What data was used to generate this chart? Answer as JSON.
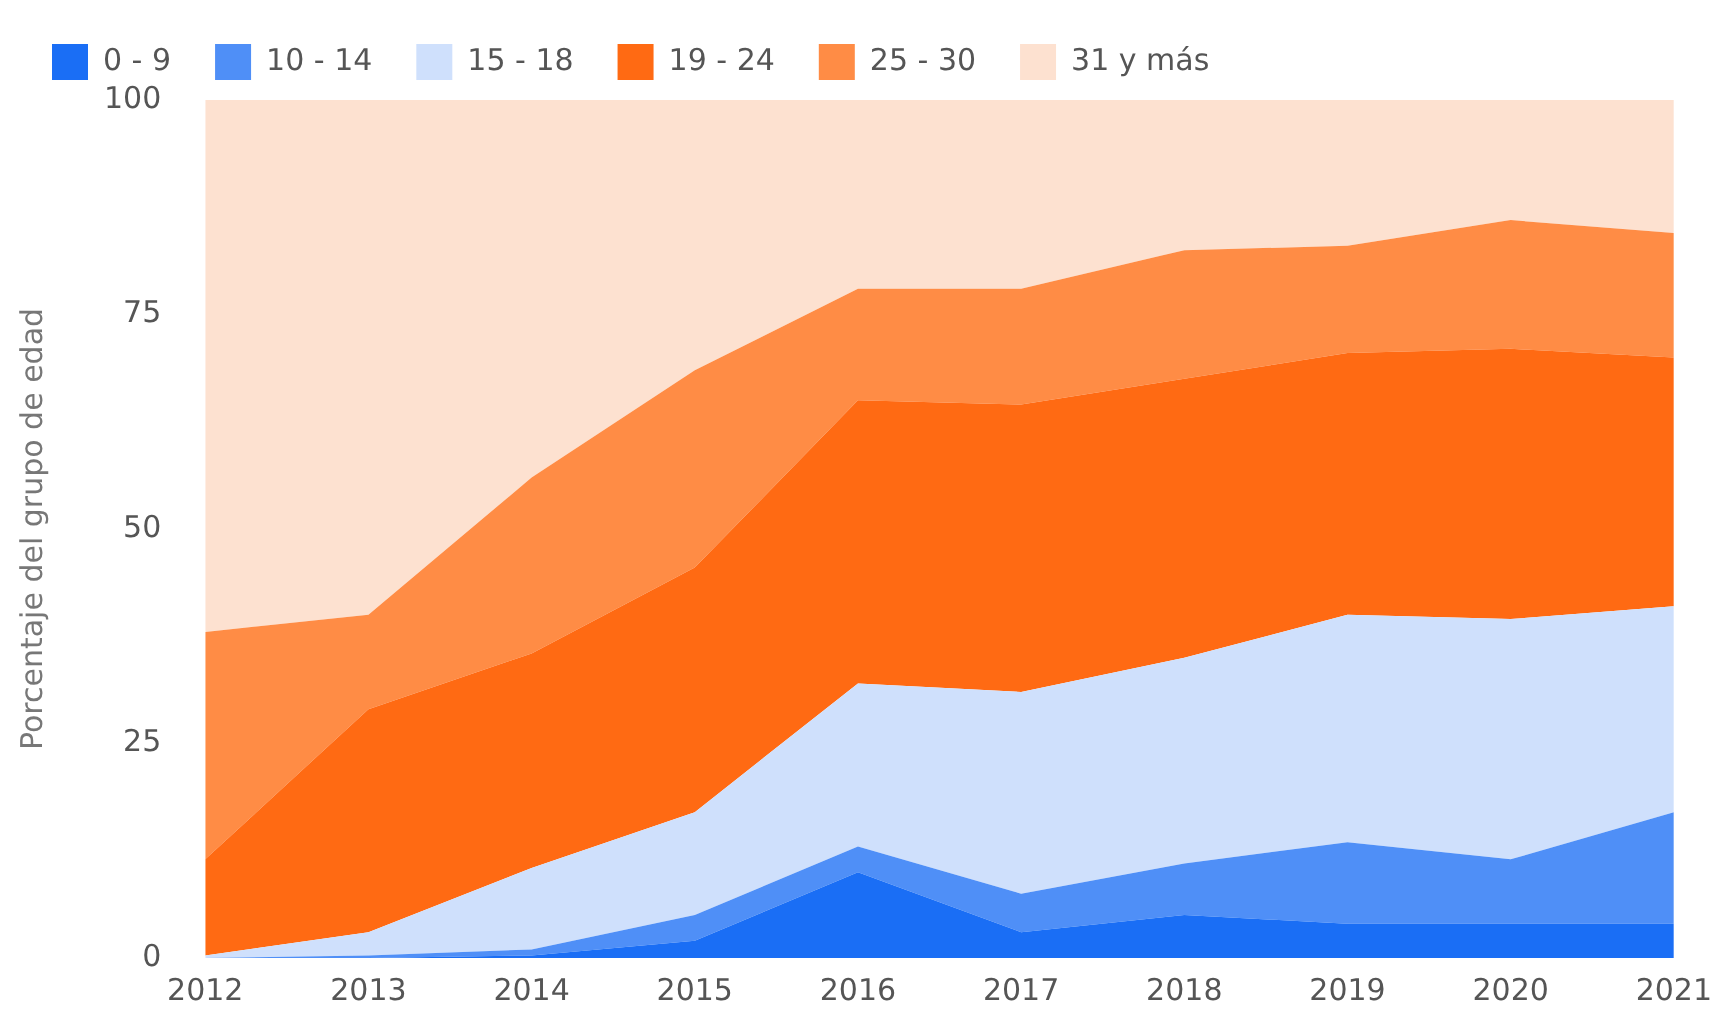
{
  "chart_data": {
    "type": "area",
    "stacked": true,
    "ylabel": "Porcentaje del grupo de edad",
    "categories": [
      "2012",
      "2013",
      "2014",
      "2015",
      "2016",
      "2017",
      "2018",
      "2019",
      "2020",
      "2021"
    ],
    "series": [
      {
        "name": "0 - 9",
        "color": "#1a6ef5",
        "values": [
          0,
          0,
          0.3,
          2,
          10,
          3,
          5,
          4,
          4,
          4
        ]
      },
      {
        "name": "10 - 14",
        "color": "#4f8ff7",
        "values": [
          0,
          0.3,
          0.7,
          3,
          3,
          4.5,
          6,
          9.5,
          7.5,
          13
        ]
      },
      {
        "name": "15 - 18",
        "color": "#cfe0fc",
        "values": [
          0.3,
          2.7,
          9.5,
          12,
          19,
          23.5,
          24,
          26.5,
          28,
          24
        ]
      },
      {
        "name": "19 - 24",
        "color": "#ff6a13",
        "values": [
          11.2,
          26,
          25,
          28.5,
          33,
          33.5,
          32.5,
          30.5,
          31.5,
          29
        ]
      },
      {
        "name": "25 - 30",
        "color": "#ff8c45",
        "values": [
          26.5,
          11,
          20.5,
          23,
          13,
          13.5,
          15,
          12.5,
          15,
          14.5
        ]
      },
      {
        "name": "31 y más",
        "color": "#fde1d0",
        "values": [
          62,
          60,
          44,
          31.5,
          22,
          22,
          17.5,
          17,
          14,
          15.5
        ]
      }
    ],
    "ylim": [
      0,
      100
    ],
    "yticks": [
      0,
      25,
      50,
      75,
      100
    ],
    "grid": false,
    "legend": "top"
  }
}
